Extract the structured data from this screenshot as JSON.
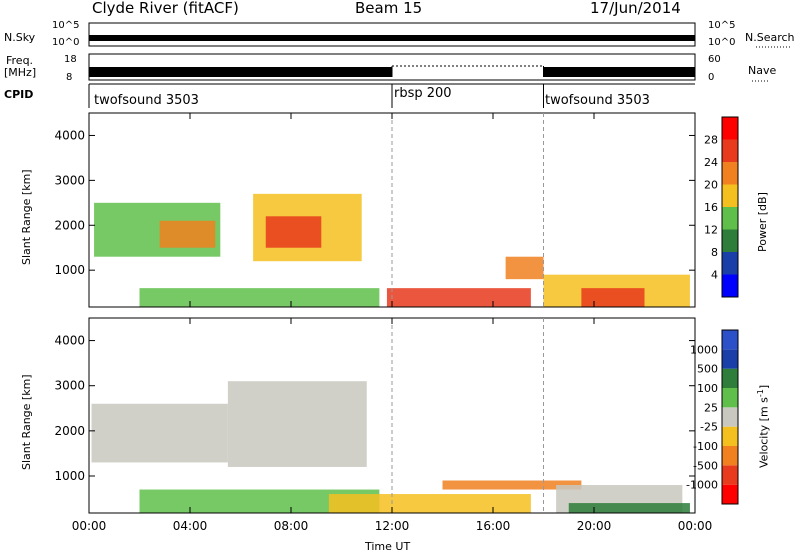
{
  "header": {
    "station": "Clyde River (fitACF)",
    "beam": "Beam 15",
    "date": "17/Jun/2014"
  },
  "aux": {
    "nsky_label": "N.Sky",
    "nsky_ticks": [
      "10^5",
      "10^0"
    ],
    "nsearch_label": "N.Search",
    "nsearch_ticks": [
      "10^5",
      "10^0"
    ],
    "freq_label": "Freq.",
    "freq_unit": "[MHz]",
    "freq_ticks": [
      "18",
      "8"
    ],
    "nave_label": "Nave",
    "nave_ticks": [
      "60",
      "0"
    ],
    "cpid_label": "CPID",
    "cpid_segments": [
      {
        "name": "twofsound 3503",
        "start_hour": 0,
        "end_hour": 12
      },
      {
        "name": "rbsp 200",
        "start_hour": 12,
        "end_hour": 18
      },
      {
        "name": "twofsound 3503",
        "start_hour": 18,
        "end_hour": 24
      }
    ]
  },
  "chart_data": [
    {
      "type": "heatmap",
      "title": "",
      "xlabel": "Time UT",
      "ylabel": "Slant Range [km]",
      "xlim_hours": [
        0,
        24
      ],
      "ylim_km": [
        180,
        4500
      ],
      "x_ticks": [
        "00:00",
        "04:00",
        "08:00",
        "12:00",
        "16:00",
        "20:00",
        "00:00"
      ],
      "y_ticks": [
        1000,
        2000,
        3000,
        4000
      ],
      "colorbar": {
        "label": "Power [dB]",
        "ticks": [
          "28",
          "24",
          "20",
          "16",
          "12",
          "8",
          "4"
        ],
        "colors": [
          "#0000ff",
          "#1a3fa8",
          "#2e7d3a",
          "#5fbf4a",
          "#f4c020",
          "#f08020",
          "#e83a1c",
          "#ff0000"
        ]
      },
      "regions": [
        {
          "t0": 0.2,
          "t1": 5.2,
          "r0": 1300,
          "r1": 2500,
          "level": 3
        },
        {
          "t0": 2.8,
          "t1": 5.0,
          "r0": 1500,
          "r1": 2100,
          "level": 5
        },
        {
          "t0": 6.5,
          "t1": 10.8,
          "r0": 1200,
          "r1": 2700,
          "level": 4
        },
        {
          "t0": 7.0,
          "t1": 9.2,
          "r0": 1500,
          "r1": 2200,
          "level": 6
        },
        {
          "t0": 2.0,
          "t1": 11.5,
          "r0": 180,
          "r1": 600,
          "level": 3
        },
        {
          "t0": 11.8,
          "t1": 17.5,
          "r0": 180,
          "r1": 600,
          "level": 6
        },
        {
          "t0": 16.5,
          "t1": 18.0,
          "r0": 800,
          "r1": 1300,
          "level": 5
        },
        {
          "t0": 18.0,
          "t1": 23.8,
          "r0": 180,
          "r1": 900,
          "level": 4
        },
        {
          "t0": 19.5,
          "t1": 22.0,
          "r0": 180,
          "r1": 600,
          "level": 6
        }
      ]
    },
    {
      "type": "heatmap",
      "title": "",
      "xlabel": "Time UT",
      "ylabel": "Slant Range [km]",
      "xlim_hours": [
        0,
        24
      ],
      "ylim_km": [
        180,
        4500
      ],
      "x_ticks": [
        "00:00",
        "04:00",
        "08:00",
        "12:00",
        "16:00",
        "20:00",
        "00:00"
      ],
      "y_ticks": [
        1000,
        2000,
        3000,
        4000
      ],
      "colorbar": {
        "label": "Velocity [m s",
        "label_exp": "-1",
        "label_close": "]",
        "ticks": [
          "1000",
          "500",
          "100",
          "25",
          "-25",
          "-100",
          "-500",
          "-1000"
        ],
        "colors": [
          "#ff0000",
          "#e83a1c",
          "#f08020",
          "#f4c020",
          "#c8c8c0",
          "#5fbf4a",
          "#2e7d3a",
          "#1a3fa8",
          "#2c50c8"
        ]
      },
      "regions": [
        {
          "t0": 0.1,
          "t1": 5.5,
          "r0": 1300,
          "r1": 2600,
          "level": 4
        },
        {
          "t0": 5.5,
          "t1": 11.0,
          "r0": 1200,
          "r1": 3100,
          "level": 4
        },
        {
          "t0": 2.0,
          "t1": 11.5,
          "r0": 180,
          "r1": 700,
          "level": 5
        },
        {
          "t0": 9.5,
          "t1": 17.5,
          "r0": 180,
          "r1": 600,
          "level": 3
        },
        {
          "t0": 14.0,
          "t1": 19.5,
          "r0": 700,
          "r1": 900,
          "level": 2
        },
        {
          "t0": 18.5,
          "t1": 23.5,
          "r0": 180,
          "r1": 800,
          "level": 4
        },
        {
          "t0": 19.0,
          "t1": 23.8,
          "r0": 180,
          "r1": 400,
          "level": 6
        }
      ]
    }
  ]
}
